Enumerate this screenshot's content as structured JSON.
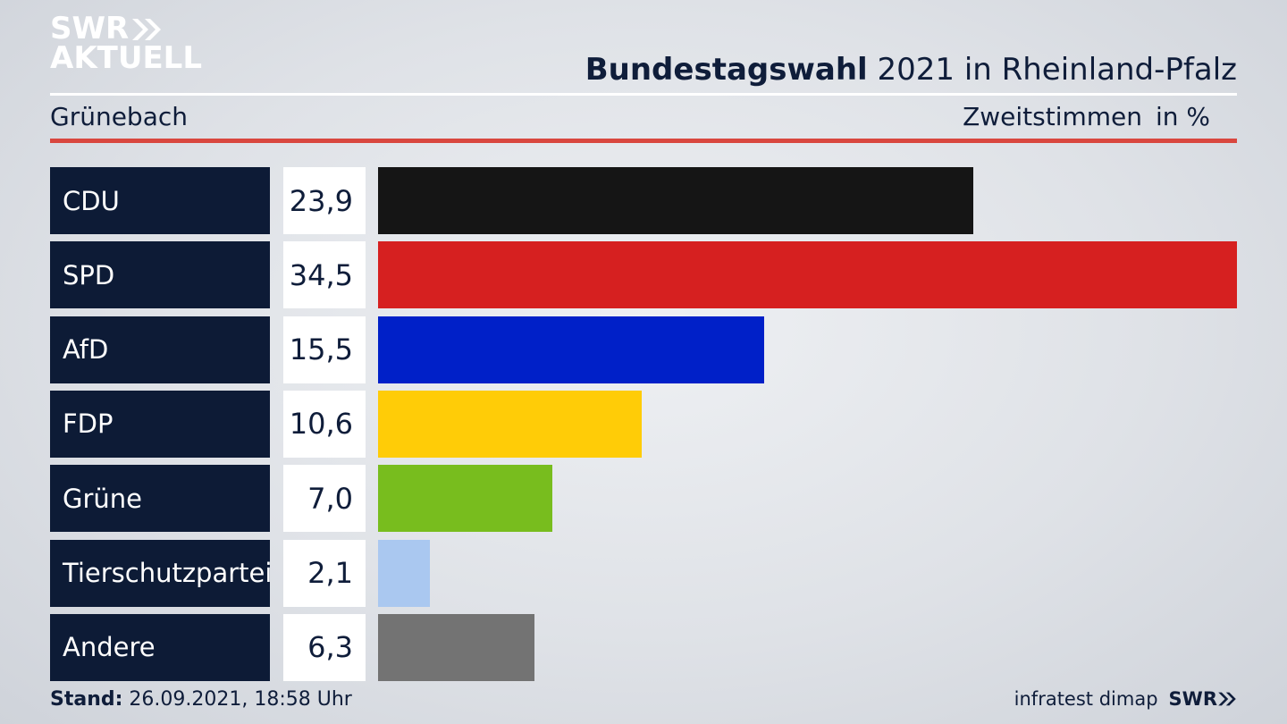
{
  "logo": {
    "line1": "SWR",
    "line2": "AKTUELL"
  },
  "header": {
    "title_bold": "Bundestagswahl",
    "title_rest": " 2021 in Rheinland-Pfalz",
    "location": "Grünebach",
    "measure": "Zweitstimmen",
    "unit": "in %"
  },
  "colors": {
    "party_box": "#0d1b36",
    "accent_line": "#d9473f"
  },
  "chart_data": {
    "type": "bar",
    "orientation": "horizontal",
    "title": "Bundestagswahl 2021 in Rheinland-Pfalz",
    "xlim": [
      0,
      34.5
    ],
    "categories": [
      "CDU",
      "SPD",
      "AfD",
      "FDP",
      "Grüne",
      "Tierschutzpartei",
      "Andere"
    ],
    "values": [
      23.9,
      34.5,
      15.5,
      10.6,
      7.0,
      2.1,
      6.3
    ],
    "labels": [
      "23,9",
      "34,5",
      "15,5",
      "10,6",
      "7,0",
      "2,1",
      "6,3"
    ],
    "colors": [
      "#151515",
      "#d62020",
      "#0020c8",
      "#ffcc07",
      "#78bd1e",
      "#aac8f0",
      "#737373"
    ]
  },
  "footer": {
    "stand_label": "Stand:",
    "stand_value": " 26.09.2021, 18:58 Uhr",
    "source": "infratest dimap",
    "brand": "SWR"
  }
}
